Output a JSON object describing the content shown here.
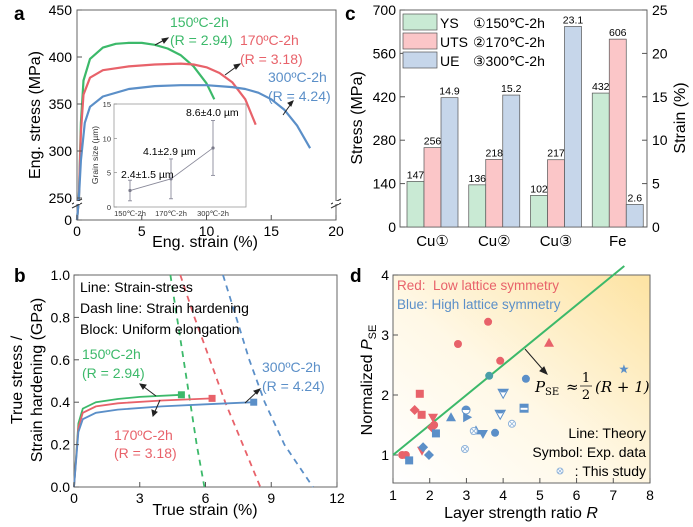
{
  "figure": {
    "panel_labels": [
      "a",
      "b",
      "c",
      "d"
    ]
  },
  "colors": {
    "green": "#3cb96a",
    "red": "#e8626a",
    "blue": "#5b8fc8",
    "bar_ys": "#c9ead4",
    "bar_uts": "#fbc6c8",
    "bar_ue": "#c6d6ea",
    "axis": "#555555",
    "gradient_yellow": "#fde6a8"
  },
  "chart_data": [
    {
      "panel": "a",
      "type": "line",
      "xlabel": "Eng. strain (%)",
      "ylabel": "Eng. stress (MPa)",
      "xlim": [
        0,
        20
      ],
      "xticks": [
        "0",
        "5",
        "10",
        "15",
        "20"
      ],
      "ylim_broken": {
        "lower": [
          0,
          0
        ],
        "upper": [
          250,
          450
        ]
      },
      "yticks": [
        "0",
        "250",
        "300",
        "350",
        "400",
        "450"
      ],
      "series": [
        {
          "name": "150ºC-2h",
          "annotation": "(R = 2.94)",
          "color": "green",
          "points": [
            [
              0,
              0
            ],
            [
              0.15,
              250
            ],
            [
              0.3,
              330
            ],
            [
              0.5,
              375
            ],
            [
              1,
              398
            ],
            [
              2,
              410
            ],
            [
              3,
              414
            ],
            [
              4,
              415
            ],
            [
              5,
              415
            ],
            [
              6,
              413
            ],
            [
              7,
              409
            ],
            [
              8,
              402
            ],
            [
              9,
              390
            ],
            [
              10,
              372
            ],
            [
              10.6,
              355
            ]
          ]
        },
        {
          "name": "170ºC-2h",
          "annotation": "(R = 3.18)",
          "color": "red",
          "points": [
            [
              0,
              0
            ],
            [
              0.15,
              250
            ],
            [
              0.3,
              320
            ],
            [
              0.5,
              360
            ],
            [
              1,
              378
            ],
            [
              2,
              386
            ],
            [
              4,
              390
            ],
            [
              6,
              392
            ],
            [
              8,
              393
            ],
            [
              9,
              392
            ],
            [
              10,
              389
            ],
            [
              11,
              383
            ],
            [
              12,
              373
            ],
            [
              13,
              355
            ],
            [
              13.8,
              328
            ]
          ]
        },
        {
          "name": "300ºC-2h",
          "annotation": "(R = 4.24)",
          "color": "blue",
          "points": [
            [
              0,
              0
            ],
            [
              0.15,
              250
            ],
            [
              0.3,
              290
            ],
            [
              0.6,
              330
            ],
            [
              1,
              347
            ],
            [
              2,
              358
            ],
            [
              4,
              366
            ],
            [
              6,
              369
            ],
            [
              8,
              370
            ],
            [
              10,
              370
            ],
            [
              12,
              368
            ],
            [
              13,
              366
            ],
            [
              14,
              362
            ],
            [
              15,
              355
            ],
            [
              16,
              344
            ],
            [
              17,
              327
            ],
            [
              18,
              303
            ]
          ]
        }
      ],
      "inset": {
        "type": "line",
        "ylabel": "Grain size (µm)",
        "ylim": [
          0,
          15
        ],
        "yticks": [
          "0",
          "5",
          "10",
          "15"
        ],
        "categories": [
          "150℃-2h",
          "170℃-2h",
          "300℃-2h"
        ],
        "values": [
          2.4,
          4.1,
          8.6
        ],
        "errors": [
          1.5,
          2.9,
          4.0
        ],
        "labels": [
          "2.4±1.5 µm",
          "4.1±2.9 µm",
          "8.6±4.0 µm"
        ]
      }
    },
    {
      "panel": "b",
      "type": "line",
      "xlabel": "True strain (%)",
      "ylabel": "True stress / Strain hardening (GPa)",
      "ylabel_lines": [
        "True stress /",
        "Strain hardening (GPa)"
      ],
      "xlim": [
        0,
        12
      ],
      "ylim": [
        0,
        1.0
      ],
      "xticks": [
        "0",
        "3",
        "6",
        "9",
        "12"
      ],
      "yticks": [
        "0.0",
        "0.2",
        "0.4",
        "0.6",
        "0.8",
        "1.0"
      ],
      "notes": [
        "Line: Strain-stress",
        "Dash line: Strain hardening",
        "Block: Uniform elongation"
      ],
      "series": [
        {
          "name": "150ºC-2h",
          "annotation": "(R = 2.94)",
          "color": "green",
          "stress": [
            [
              0,
              0
            ],
            [
              0.2,
              0.3
            ],
            [
              0.4,
              0.37
            ],
            [
              1,
              0.4
            ],
            [
              2,
              0.415
            ],
            [
              3,
              0.425
            ],
            [
              4.9,
              0.435
            ]
          ],
          "hardening": [
            [
              4.4,
              1.0
            ],
            [
              4.7,
              0.8
            ],
            [
              5.0,
              0.6
            ],
            [
              5.3,
              0.4
            ],
            [
              5.6,
              0.2
            ],
            [
              5.95,
              0.0
            ]
          ],
          "uniform_elongation": [
            4.9,
            0.435
          ]
        },
        {
          "name": "170ºC-2h",
          "annotation": "(R = 3.18)",
          "color": "red",
          "stress": [
            [
              0,
              0
            ],
            [
              0.2,
              0.28
            ],
            [
              0.4,
              0.35
            ],
            [
              1,
              0.38
            ],
            [
              2,
              0.395
            ],
            [
              4,
              0.408
            ],
            [
              6.3,
              0.418
            ]
          ],
          "hardening": [
            [
              4.85,
              1.0
            ],
            [
              5.5,
              0.8
            ],
            [
              6.2,
              0.6
            ],
            [
              6.9,
              0.4
            ],
            [
              7.7,
              0.2
            ],
            [
              8.5,
              0.0
            ]
          ],
          "uniform_elongation": [
            6.3,
            0.418
          ]
        },
        {
          "name": "300ºC-2h",
          "annotation": "(R = 4.24)",
          "color": "blue",
          "stress": [
            [
              0,
              0
            ],
            [
              0.2,
              0.26
            ],
            [
              0.4,
              0.32
            ],
            [
              1,
              0.35
            ],
            [
              2,
              0.365
            ],
            [
              4,
              0.38
            ],
            [
              6,
              0.39
            ],
            [
              8.2,
              0.4
            ]
          ],
          "hardening": [
            [
              6.8,
              1.0
            ],
            [
              7.4,
              0.8
            ],
            [
              8.0,
              0.6
            ],
            [
              8.7,
              0.4
            ],
            [
              9.6,
              0.2
            ],
            [
              10.9,
              0.0
            ]
          ],
          "uniform_elongation": [
            8.2,
            0.4
          ]
        }
      ]
    },
    {
      "panel": "c",
      "type": "bar",
      "ylabel": "Stress (MPa)",
      "y2label": "Strain (%)",
      "ylim": [
        0,
        700
      ],
      "y2lim": [
        0,
        25
      ],
      "yticks": [
        "0",
        "140",
        "280",
        "420",
        "560",
        "700"
      ],
      "y2ticks": [
        "0",
        "5",
        "10",
        "15",
        "20",
        "25"
      ],
      "categories": [
        "Cu①",
        "Cu②",
        "Cu③",
        "Fe"
      ],
      "legend": [
        {
          "name": "YS",
          "note": "①150℃-2h"
        },
        {
          "name": "UTS",
          "note": "②170℃-2h"
        },
        {
          "name": "UE",
          "note": "③300℃-2h"
        }
      ],
      "series": [
        {
          "name": "YS",
          "axis": "left",
          "color": "bar_ys",
          "values": [
            147,
            136,
            102,
            432
          ],
          "labels": [
            "147",
            "136",
            "102",
            "432"
          ]
        },
        {
          "name": "UTS",
          "axis": "left",
          "color": "bar_uts",
          "values": [
            256,
            218,
            217,
            606
          ],
          "labels": [
            "256",
            "218",
            "217",
            "606"
          ]
        },
        {
          "name": "UE",
          "axis": "right",
          "color": "bar_ue",
          "values": [
            14.9,
            15.2,
            23.1,
            2.6
          ],
          "labels": [
            "14.9",
            "15.2",
            "23.1",
            "2.6"
          ]
        }
      ]
    },
    {
      "panel": "d",
      "type": "scatter",
      "xlabel": "Layer strength ratio R",
      "xlabel_main": "Layer strength ratio ",
      "xlabel_var": "R",
      "ylabel_main": "Normalized ",
      "ylabel_var": "P",
      "ylabel_sub": "SE",
      "xlim": [
        1,
        8
      ],
      "ylim": [
        0.53,
        4
      ],
      "xticks": [
        "1",
        "2",
        "3",
        "4",
        "5",
        "6",
        "7",
        "8"
      ],
      "yticks": [
        "1",
        "2",
        "3",
        "4"
      ],
      "legend_text": [
        "Red:  Low lattice symmetry",
        "Blue: High lattice symmetry"
      ],
      "notes": [
        "Line: Theory",
        "Symbol: Exp. data",
        ": This study"
      ],
      "equation": {
        "lhs": "P",
        "lhs_sub": "SE",
        "approx": "≈",
        "num": "1",
        "den": "2",
        "rhs": "(R + 1)"
      },
      "theory_line": {
        "formula": "P = (R+1)/2",
        "x": [
          1,
          7.3
        ],
        "color": "green"
      },
      "points": [
        {
          "x": 3.59,
          "y": 3.22,
          "color": "red",
          "marker": "circle"
        },
        {
          "x": 2.77,
          "y": 2.85,
          "color": "red",
          "marker": "circle"
        },
        {
          "x": 3.92,
          "y": 2.57,
          "color": "red",
          "marker": "circle"
        },
        {
          "x": 5.25,
          "y": 2.87,
          "color": "red",
          "marker": "triangle-up"
        },
        {
          "x": 1.73,
          "y": 2.02,
          "color": "red",
          "marker": "square"
        },
        {
          "x": 1.59,
          "y": 1.75,
          "color": "red",
          "marker": "diamond"
        },
        {
          "x": 1.78,
          "y": 1.67,
          "color": "red",
          "marker": "square"
        },
        {
          "x": 2.09,
          "y": 1.62,
          "color": "red",
          "marker": "triangle-down"
        },
        {
          "x": 2.12,
          "y": 1.5,
          "color": "red",
          "marker": "circle"
        },
        {
          "x": 2.06,
          "y": 1.46,
          "color": "red",
          "marker": "diamond"
        },
        {
          "x": 1.79,
          "y": 1.07,
          "color": "red",
          "marker": "triangle-down"
        },
        {
          "x": 1.25,
          "y": 1.0,
          "color": "red",
          "marker": "circle"
        },
        {
          "x": 1.35,
          "y": 1.0,
          "color": "red",
          "marker": "circle"
        },
        {
          "x": 3.62,
          "y": 2.32,
          "color": "teal",
          "marker": "circle"
        },
        {
          "x": 4.62,
          "y": 2.27,
          "color": "blue",
          "marker": "circle"
        },
        {
          "x": 7.29,
          "y": 2.43,
          "color": "blue",
          "marker": "star"
        },
        {
          "x": 4.0,
          "y": 2.03,
          "color": "blue",
          "marker": "triangle-down-half"
        },
        {
          "x": 3.92,
          "y": 1.68,
          "color": "blue",
          "marker": "triangle-down-half"
        },
        {
          "x": 4.57,
          "y": 1.78,
          "color": "blue",
          "marker": "square-half"
        },
        {
          "x": 2.99,
          "y": 1.75,
          "color": "blue",
          "marker": "circle-half"
        },
        {
          "x": 3.02,
          "y": 1.63,
          "color": "blue",
          "marker": "triangle-right"
        },
        {
          "x": 2.58,
          "y": 1.63,
          "color": "blue",
          "marker": "triangle-up"
        },
        {
          "x": 2.17,
          "y": 1.36,
          "color": "blue",
          "marker": "square"
        },
        {
          "x": 3.26,
          "y": 1.41,
          "color": "blue",
          "marker": "triangle-up"
        },
        {
          "x": 3.45,
          "y": 1.35,
          "color": "blue",
          "marker": "triangle-down"
        },
        {
          "x": 3.78,
          "y": 1.37,
          "color": "blue",
          "marker": "circle"
        },
        {
          "x": 1.82,
          "y": 1.13,
          "color": "blue",
          "marker": "diamond"
        },
        {
          "x": 1.98,
          "y": 1.0,
          "color": "blue",
          "marker": "diamond"
        },
        {
          "x": 1.44,
          "y": 0.91,
          "color": "blue",
          "marker": "square"
        },
        {
          "x": 4.24,
          "y": 1.52,
          "color": "lightblue",
          "marker": "this-study"
        },
        {
          "x": 3.2,
          "y": 1.4,
          "color": "lightblue",
          "marker": "this-study"
        },
        {
          "x": 2.96,
          "y": 1.1,
          "color": "lightblue",
          "marker": "this-study"
        }
      ]
    }
  ]
}
